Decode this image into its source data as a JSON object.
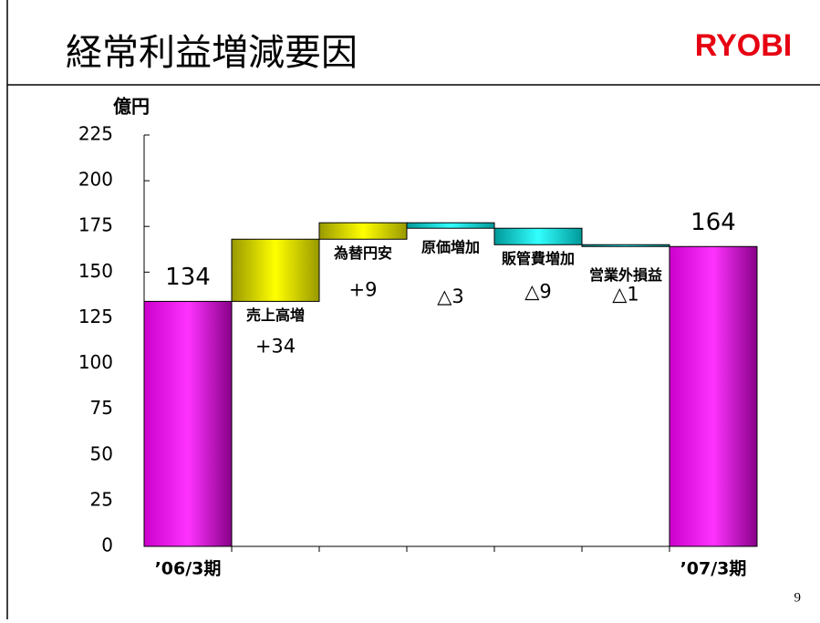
{
  "chart_data": {
    "type": "waterfall",
    "title": "経常利益増減要因",
    "logo": "RYOBI",
    "unit": "億円",
    "page_number": "9",
    "categories": [
      "’06/3期",
      "売上高増",
      "為替円安",
      "原価増加",
      "販管費増加",
      "営業外損益",
      "’07/3期"
    ],
    "values": [
      134,
      34,
      9,
      -3,
      -9,
      -1,
      164
    ],
    "value_labels": [
      "134",
      "+34",
      "+9",
      "△3",
      "△9",
      "△1",
      "164"
    ],
    "colors": [
      "#cc00cc",
      "#cccc00",
      "#cccc00",
      "#00cccc",
      "#00cccc",
      "#00cccc",
      "#cc00cc"
    ],
    "ylim": [
      0,
      225
    ],
    "yticks": [
      0,
      25,
      50,
      75,
      100,
      125,
      150,
      175,
      200,
      225
    ]
  }
}
